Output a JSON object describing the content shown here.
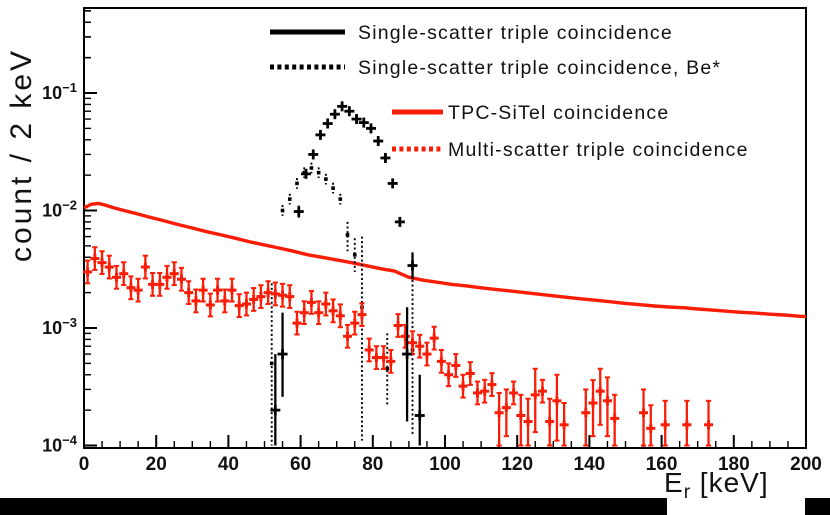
{
  "figure": {
    "ylabel": "count / 2 keV",
    "xlabel_main": "E",
    "xlabel_sub": "r",
    "xlabel_unit": " [keV]"
  },
  "colors": {
    "accent_red": "#fb1c06",
    "ink": "#000000"
  },
  "chart_data": {
    "type": "line",
    "title": "",
    "xlabel": "E_r [keV]",
    "ylabel": "count / 2 keV",
    "xlim": [
      0,
      200
    ],
    "ylim": [
      9.52e-05,
      0.529
    ],
    "yscale": "log",
    "grid": false,
    "legend_position": "top-right, borderless",
    "xticks": [
      0,
      20,
      40,
      60,
      80,
      100,
      120,
      140,
      160,
      180,
      200
    ],
    "x_minor_step": 5,
    "ytick_exponents": [
      -1,
      -2,
      -3,
      -4
    ],
    "legend": [
      {
        "label": "Single-scatter triple coincidence",
        "series": "black_solid"
      },
      {
        "label": "Single-scatter triple coincidence, Be*",
        "series": "black_dotted"
      },
      {
        "label": "TPC-SiTel coincidence",
        "series": "red_line"
      },
      {
        "label": "Multi-scatter triple coincidence",
        "series": "red_dotted"
      }
    ],
    "series": [
      {
        "id": "red_line",
        "name": "TPC-SiTel coincidence",
        "type": "line",
        "color": "#fb1c06",
        "line_style": "solid",
        "points": [
          [
            0,
            0.0105
          ],
          [
            2,
            0.0113
          ],
          [
            4,
            0.0115
          ],
          [
            6,
            0.0111
          ],
          [
            8,
            0.0106
          ],
          [
            10,
            0.0102
          ],
          [
            14,
            0.0095
          ],
          [
            18,
            0.0088
          ],
          [
            22,
            0.0082
          ],
          [
            26,
            0.0076
          ],
          [
            30,
            0.0071
          ],
          [
            34,
            0.0066
          ],
          [
            38,
            0.0062
          ],
          [
            42,
            0.0058
          ],
          [
            46,
            0.0054
          ],
          [
            50,
            0.0051
          ],
          [
            54,
            0.0048
          ],
          [
            58,
            0.0045
          ],
          [
            62,
            0.0042
          ],
          [
            66,
            0.004
          ],
          [
            70,
            0.0038
          ],
          [
            74,
            0.0036
          ],
          [
            78,
            0.0034
          ],
          [
            82,
            0.0032
          ],
          [
            86,
            0.00305
          ],
          [
            90,
            0.0027
          ],
          [
            94,
            0.00255
          ],
          [
            98,
            0.00245
          ],
          [
            102,
            0.00235
          ],
          [
            106,
            0.00228
          ],
          [
            110,
            0.0022
          ],
          [
            114,
            0.00213
          ],
          [
            118,
            0.00207
          ],
          [
            122,
            0.002
          ],
          [
            126,
            0.00194
          ],
          [
            130,
            0.00188
          ],
          [
            134,
            0.00182
          ],
          [
            138,
            0.00177
          ],
          [
            142,
            0.00172
          ],
          [
            146,
            0.00167
          ],
          [
            150,
            0.00162
          ],
          [
            154,
            0.00158
          ],
          [
            158,
            0.00154
          ],
          [
            162,
            0.00151
          ],
          [
            166,
            0.00149
          ],
          [
            170,
            0.00145
          ],
          [
            174,
            0.00142
          ],
          [
            178,
            0.00139
          ],
          [
            182,
            0.00136
          ],
          [
            186,
            0.00134
          ],
          [
            190,
            0.00131
          ],
          [
            194,
            0.00129
          ],
          [
            198,
            0.00126
          ],
          [
            200,
            0.00125
          ]
        ]
      },
      {
        "id": "black_dotted",
        "name": "Single-scatter triple coincidence, Be*",
        "type": "scatter",
        "color": "#000000",
        "marker": "square",
        "err_dash": true,
        "err_caps": false,
        "err_lo_f": 0.9,
        "err_hi_f": 1.11,
        "points": [
          [
            52,
            0.0005,
            0.0001,
            0.0024
          ],
          [
            55,
            0.01
          ],
          [
            57,
            0.0125
          ],
          [
            59,
            0.017
          ],
          [
            61,
            0.021
          ],
          [
            63,
            0.023
          ],
          [
            65,
            0.021
          ],
          [
            67,
            0.0185
          ],
          [
            69,
            0.0155
          ],
          [
            71,
            0.0125
          ],
          [
            73,
            0.0062,
            0.0045,
            0.008
          ],
          [
            75,
            0.0042,
            0.003,
            0.0058
          ],
          [
            77,
            0.0015,
            0.00011,
            0.006
          ],
          [
            84,
            0.00045,
            0.00022,
            0.0009
          ],
          [
            91,
            0.00065,
            0.00012,
            0.0028
          ]
        ]
      },
      {
        "id": "red_dotted",
        "name": "Multi-scatter triple coincidence",
        "type": "scatter",
        "color": "#fb1c06",
        "marker": "plus",
        "err_dash": false,
        "err_caps": true,
        "err_lo_f": 0.8,
        "err_hi_f": 1.25,
        "points": [
          [
            1,
            0.003
          ],
          [
            3,
            0.0039
          ],
          [
            5,
            0.0036
          ],
          [
            7,
            0.0033
          ],
          [
            9,
            0.0027
          ],
          [
            11,
            0.0029
          ],
          [
            13,
            0.0022
          ],
          [
            15,
            0.0021
          ],
          [
            17,
            0.0033
          ],
          [
            19,
            0.00235
          ],
          [
            21,
            0.00235
          ],
          [
            23,
            0.0027
          ],
          [
            25,
            0.0029
          ],
          [
            27,
            0.0026
          ],
          [
            29,
            0.002
          ],
          [
            31,
            0.0017
          ],
          [
            33,
            0.0021
          ],
          [
            35,
            0.00157
          ],
          [
            37,
            0.0021
          ],
          [
            39,
            0.0017
          ],
          [
            41,
            0.0021
          ],
          [
            43,
            0.00155
          ],
          [
            45,
            0.0016
          ],
          [
            47,
            0.00175
          ],
          [
            49,
            0.00185
          ],
          [
            51,
            0.002
          ],
          [
            53,
            0.00195
          ],
          [
            55,
            0.0019
          ],
          [
            57,
            0.00185
          ],
          [
            59,
            0.0011
          ],
          [
            61,
            0.00135
          ],
          [
            63,
            0.00165
          ],
          [
            65,
            0.00135
          ],
          [
            67,
            0.0016
          ],
          [
            69,
            0.0014
          ],
          [
            71,
            0.00127
          ],
          [
            73,
            0.00085
          ],
          [
            75,
            0.0011
          ],
          [
            77,
            0.0013
          ],
          [
            79,
            0.00065
          ],
          [
            81,
            0.00056
          ],
          [
            83,
            0.00056
          ],
          [
            85,
            0.00052
          ],
          [
            87,
            0.00105
          ],
          [
            89,
            0.00085
          ],
          [
            91,
            0.00075
          ],
          [
            93,
            0.0007
          ],
          [
            95,
            0.0006
          ],
          [
            97,
            0.00082
          ],
          [
            99,
            0.00052
          ],
          [
            101,
            0.0004
          ],
          [
            103,
            0.00048
          ],
          [
            105,
            0.00032
          ],
          [
            107,
            0.00041
          ],
          [
            109,
            0.00028
          ],
          [
            111,
            0.00029
          ],
          [
            113,
            0.00033
          ],
          [
            115,
            0.00019,
            0.0001,
            0.00028
          ],
          [
            117,
            0.00021,
            0.00012,
            0.0003
          ],
          [
            119,
            0.00028
          ],
          [
            121,
            0.00018,
            0.0001,
            0.00027
          ],
          [
            123,
            0.00016,
            0.0001,
            0.00025
          ],
          [
            125,
            0.00027,
            0.00013,
            0.00045
          ],
          [
            127,
            0.00029
          ],
          [
            129,
            0.00016,
            0.0001,
            0.00025
          ],
          [
            131,
            0.00024,
            0.00011,
            0.0004
          ],
          [
            133,
            0.00015,
            0.0001,
            0.00023
          ],
          [
            139,
            0.00019,
            0.0001,
            0.0003
          ],
          [
            141,
            0.00023,
            0.00012,
            0.00036
          ],
          [
            143,
            0.00029,
            0.00015,
            0.00045
          ],
          [
            145,
            0.00024,
            0.00012,
            0.00038
          ],
          [
            147,
            0.00017,
            0.0001,
            0.00027
          ],
          [
            155,
            0.00019,
            0.0001,
            0.0003
          ],
          [
            157,
            0.00014,
            0.0001,
            0.00022
          ],
          [
            161,
            0.00015,
            0.0001,
            0.00024
          ],
          [
            167,
            0.00015,
            0.0001,
            0.00024
          ],
          [
            173,
            0.00015,
            0.0001,
            0.00024
          ]
        ]
      },
      {
        "id": "black_solid",
        "name": "Single-scatter triple coincidence",
        "type": "scatter",
        "color": "#000000",
        "marker": "plus",
        "err_dash": false,
        "err_caps": false,
        "err_lo_f": 0.93,
        "err_hi_f": 1.075,
        "points": [
          [
            53,
            0.0002,
            0.0001,
            0.0006
          ],
          [
            55,
            0.0006,
            0.00026,
            0.00135
          ],
          [
            59.5,
            0.0098,
            0.0087,
            0.011
          ],
          [
            61.5,
            0.0205
          ],
          [
            63.5,
            0.03
          ],
          [
            65.5,
            0.044
          ],
          [
            67.5,
            0.055
          ],
          [
            69.5,
            0.066
          ],
          [
            71.5,
            0.077
          ],
          [
            73.5,
            0.07
          ],
          [
            75.5,
            0.06
          ],
          [
            77.5,
            0.056
          ],
          [
            79.5,
            0.05
          ],
          [
            81.5,
            0.039
          ],
          [
            83.5,
            0.028
          ],
          [
            85.5,
            0.017
          ],
          [
            87.5,
            0.008
          ],
          [
            89.5,
            0.0006,
            0.00016,
            0.0015
          ],
          [
            91,
            0.0034,
            0.0026,
            0.0044
          ],
          [
            93,
            0.00018,
            0.0001,
            0.0004
          ]
        ]
      }
    ]
  }
}
